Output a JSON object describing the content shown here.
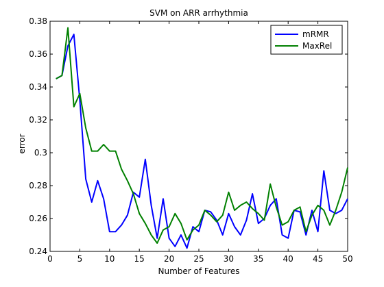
{
  "chart_data": {
    "type": "line",
    "title": "SVM on ARR arrhythmia",
    "xlabel": "Number of Features",
    "ylabel": "error",
    "xlim": [
      0,
      50
    ],
    "ylim": [
      0.24,
      0.38
    ],
    "xticks": [
      0,
      5,
      10,
      15,
      20,
      25,
      30,
      35,
      40,
      45,
      50
    ],
    "xtick_labels": [
      "0",
      "5",
      "10",
      "15",
      "20",
      "25",
      "30",
      "35",
      "40",
      "45",
      "50"
    ],
    "yticks": [
      0.24,
      0.26,
      0.28,
      0.3,
      0.32,
      0.34,
      0.36,
      0.38
    ],
    "ytick_labels": [
      "0.24",
      "0.26",
      "0.28",
      "0.3",
      "0.32",
      "0.34",
      "0.36",
      "0.38"
    ],
    "grid": false,
    "legend_position": "top-right",
    "x": [
      1,
      2,
      3,
      4,
      5,
      6,
      7,
      8,
      9,
      10,
      11,
      12,
      13,
      14,
      15,
      16,
      17,
      18,
      19,
      20,
      21,
      22,
      23,
      24,
      25,
      26,
      27,
      28,
      29,
      30,
      31,
      32,
      33,
      34,
      35,
      36,
      37,
      38,
      39,
      40,
      41,
      42,
      43,
      44,
      45,
      46,
      47,
      48,
      49,
      50
    ],
    "series": [
      {
        "name": "mRMR",
        "color": "#0000ff",
        "values": [
          0.345,
          0.347,
          0.365,
          0.372,
          0.332,
          0.284,
          0.27,
          0.283,
          0.272,
          0.252,
          0.252,
          0.256,
          0.262,
          0.276,
          0.273,
          0.296,
          0.268,
          0.248,
          0.272,
          0.248,
          0.243,
          0.25,
          0.242,
          0.255,
          0.252,
          0.265,
          0.264,
          0.259,
          0.25,
          0.263,
          0.255,
          0.25,
          0.259,
          0.275,
          0.257,
          0.26,
          0.268,
          0.272,
          0.25,
          0.248,
          0.265,
          0.264,
          0.25,
          0.265,
          0.252,
          0.289,
          0.265,
          0.263,
          0.265,
          0.272
        ]
      },
      {
        "name": "MaxRel",
        "color": "#008000",
        "values": [
          0.345,
          0.347,
          0.376,
          0.328,
          0.336,
          0.315,
          0.301,
          0.301,
          0.305,
          0.301,
          0.301,
          0.29,
          0.283,
          0.275,
          0.263,
          0.257,
          0.25,
          0.245,
          0.253,
          0.255,
          0.263,
          0.257,
          0.247,
          0.253,
          0.256,
          0.265,
          0.262,
          0.258,
          0.262,
          0.276,
          0.265,
          0.268,
          0.27,
          0.266,
          0.263,
          0.259,
          0.281,
          0.267,
          0.256,
          0.258,
          0.265,
          0.267,
          0.252,
          0.262,
          0.268,
          0.265,
          0.256,
          0.265,
          0.276,
          0.291
        ]
      }
    ]
  }
}
